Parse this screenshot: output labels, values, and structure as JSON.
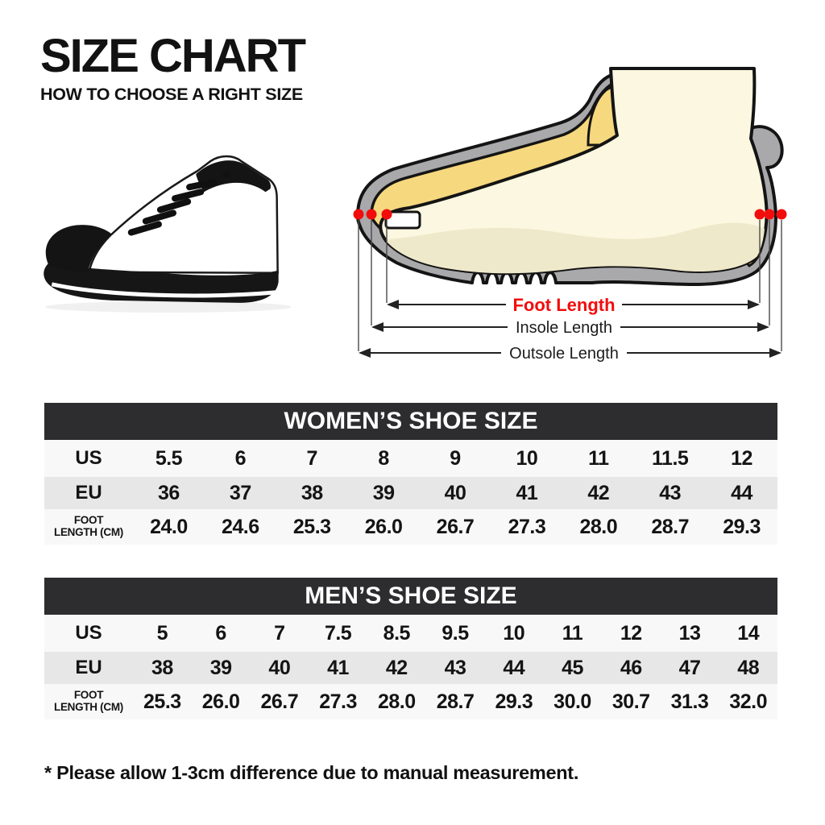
{
  "page": {
    "title": "SIZE CHART",
    "subtitle": "HOW TO CHOOSE A RIGHT SIZE",
    "note": "* Please allow 1-3cm difference due to manual measurement."
  },
  "diagram": {
    "labels": {
      "foot": "Foot Length",
      "insole": "Insole Length",
      "outsole": "Outsole Length"
    },
    "colors": {
      "marker_red": "#f20d0d",
      "shoe_gray": "#a9a8ab",
      "insole_yellow": "#f6d87e",
      "foot_cream": "#fbf7e0",
      "foot_shade": "#efe9cb",
      "outline_black": "#141414"
    }
  },
  "tables": [
    {
      "id": "women",
      "title": "WOMEN’S SHOE SIZE",
      "rows": [
        {
          "label": "US",
          "values": [
            "5.5",
            "6",
            "7",
            "8",
            "9",
            "10",
            "11",
            "11.5",
            "12"
          ]
        },
        {
          "label": "EU",
          "values": [
            "36",
            "37",
            "38",
            "39",
            "40",
            "41",
            "42",
            "43",
            "44"
          ]
        },
        {
          "label": "FOOT LENGTH (CM)",
          "label_lines": [
            "FOOT",
            "LENGTH (CM)"
          ],
          "values": [
            "24.0",
            "24.6",
            "25.3",
            "26.0",
            "26.7",
            "27.3",
            "28.0",
            "28.7",
            "29.3"
          ]
        }
      ]
    },
    {
      "id": "men",
      "title": "MEN’S SHOE SIZE",
      "rows": [
        {
          "label": "US",
          "values": [
            "5",
            "6",
            "7",
            "7.5",
            "8.5",
            "9.5",
            "10",
            "11",
            "12",
            "13",
            "14"
          ]
        },
        {
          "label": "EU",
          "values": [
            "38",
            "39",
            "40",
            "41",
            "42",
            "43",
            "44",
            "45",
            "46",
            "47",
            "48"
          ]
        },
        {
          "label": "FOOT LENGTH (CM)",
          "label_lines": [
            "FOOT",
            "LENGTH (CM)"
          ],
          "values": [
            "25.3",
            "26.0",
            "26.7",
            "27.3",
            "28.0",
            "28.7",
            "29.3",
            "30.0",
            "30.7",
            "31.3",
            "32.0"
          ]
        }
      ]
    }
  ],
  "table_style": {
    "header_bar": "#2d2c2e",
    "row_light": "#f8f8f8",
    "row_gray": "#e8e7e8"
  }
}
